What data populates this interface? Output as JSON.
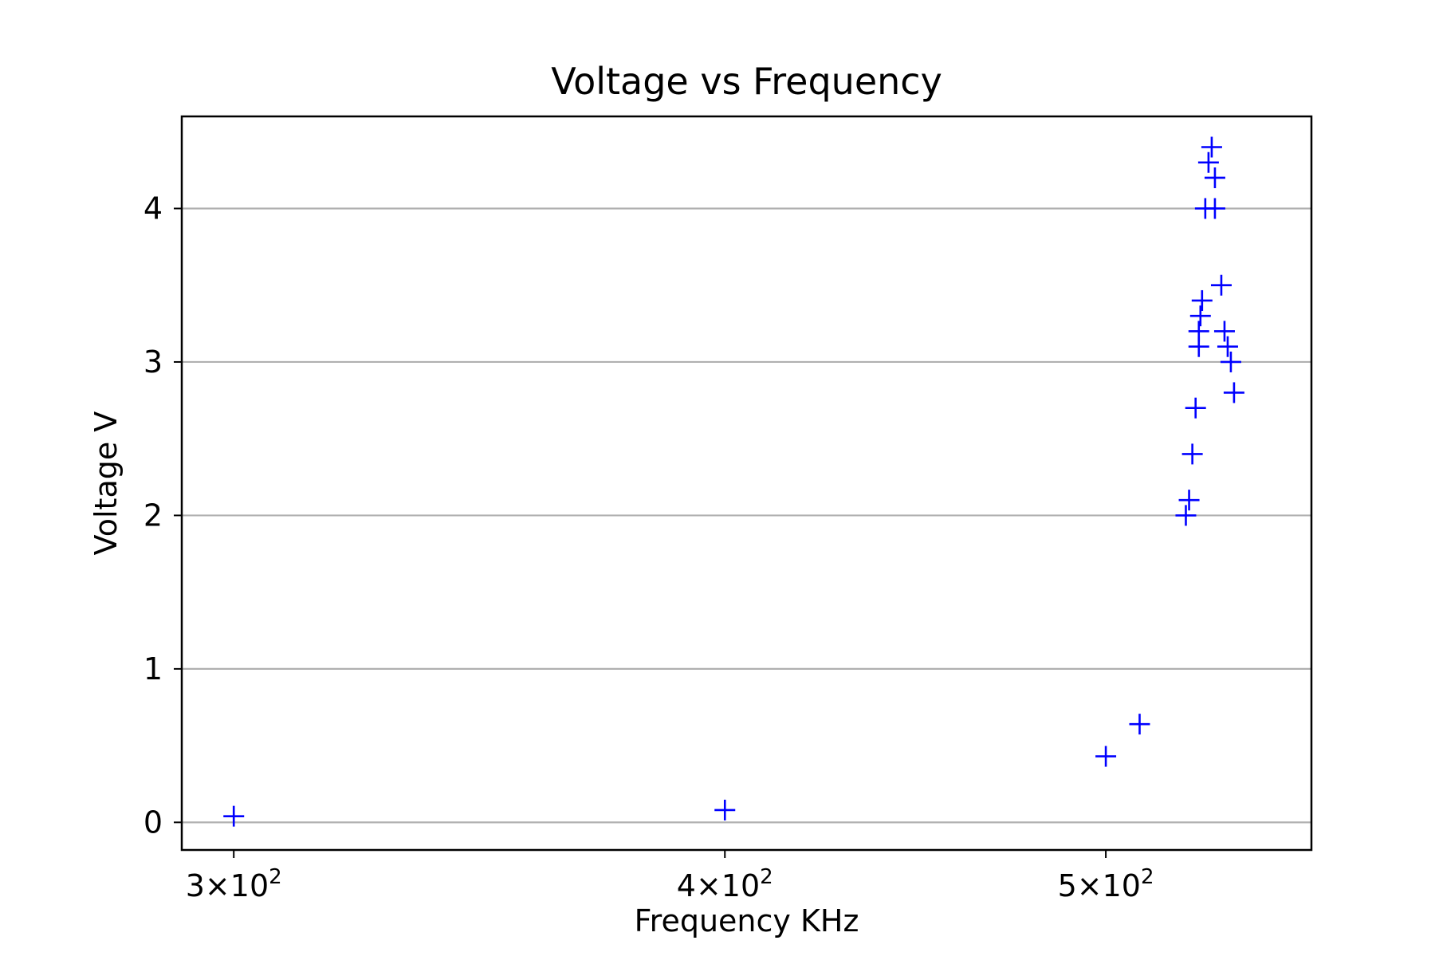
{
  "chart_data": {
    "type": "scatter",
    "title": "Voltage vs Frequency",
    "xlabel": "Frequency KHz",
    "ylabel": "Voltage V",
    "x_scale": "log",
    "xlim": [
      291,
      564
    ],
    "ylim": [
      -0.18,
      4.6
    ],
    "grid": "y-major",
    "marker": "+",
    "colors": {
      "marker": "#0000ff",
      "grid": "#b0b0b0",
      "axes": "#000000"
    },
    "x_ticks": [
      {
        "value": 300,
        "mantissa": "3",
        "base": "10",
        "exponent": "2"
      },
      {
        "value": 400,
        "mantissa": "4",
        "base": "10",
        "exponent": "2"
      },
      {
        "value": 500,
        "mantissa": "5",
        "base": "10",
        "exponent": "2"
      }
    ],
    "y_ticks": [
      {
        "value": 0,
        "label": "0"
      },
      {
        "value": 1,
        "label": "1"
      },
      {
        "value": 2,
        "label": "2"
      },
      {
        "value": 3,
        "label": "3"
      },
      {
        "value": 4,
        "label": "4"
      }
    ],
    "series": [
      {
        "points": [
          [
            300,
            0.04
          ],
          [
            400,
            0.08
          ],
          [
            500,
            0.43
          ],
          [
            510,
            0.64
          ],
          [
            524,
            2.0
          ],
          [
            525,
            2.1
          ],
          [
            526,
            2.4
          ],
          [
            527,
            2.7
          ],
          [
            528,
            3.1
          ],
          [
            528,
            3.2
          ],
          [
            528.5,
            3.3
          ],
          [
            529,
            3.4
          ],
          [
            530,
            4.0
          ],
          [
            531,
            4.3
          ],
          [
            532,
            4.4
          ],
          [
            533,
            4.2
          ],
          [
            533,
            4.0
          ],
          [
            535,
            3.5
          ],
          [
            536,
            3.2
          ],
          [
            537,
            3.1
          ],
          [
            538,
            3.0
          ],
          [
            539,
            2.8
          ]
        ]
      }
    ]
  }
}
